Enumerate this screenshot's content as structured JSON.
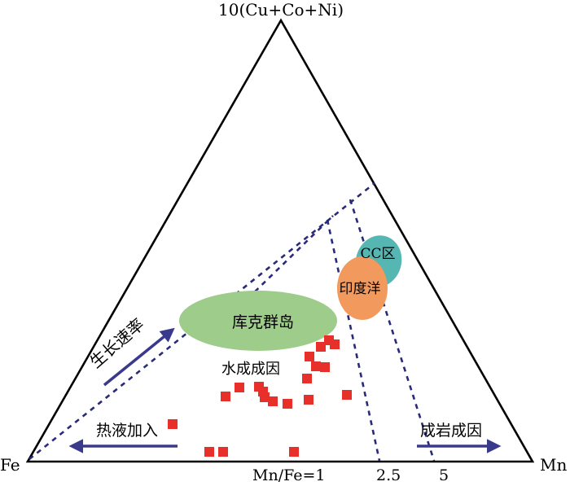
{
  "vertices": {
    "top": "10(Cu+Co+Ni)",
    "left": "Fe",
    "right": "Mn"
  },
  "base_labels": {
    "ratio_1": "Mn/Fe=1",
    "ratio_2": "2.5",
    "ratio_3": "5"
  },
  "regions": {
    "cook_islands": "库克群岛",
    "cc_zone": "CC区",
    "indian_ocean": "印度洋",
    "hydrogenetic": "水成成因"
  },
  "arrows": {
    "growth_rate": "生长速率",
    "hydrothermal": "热液加入",
    "diagenetic": "成岩成因"
  },
  "colors": {
    "triangle": "#000000",
    "dashed_lines": "#2a2a7a",
    "arrow": "#3a3a8c",
    "cook_islands": "#9ecc8a",
    "cc_zone": "#55b6b2",
    "indian_ocean": "#f29a5e",
    "samples": "#e8302a"
  },
  "sample_count": 27
}
